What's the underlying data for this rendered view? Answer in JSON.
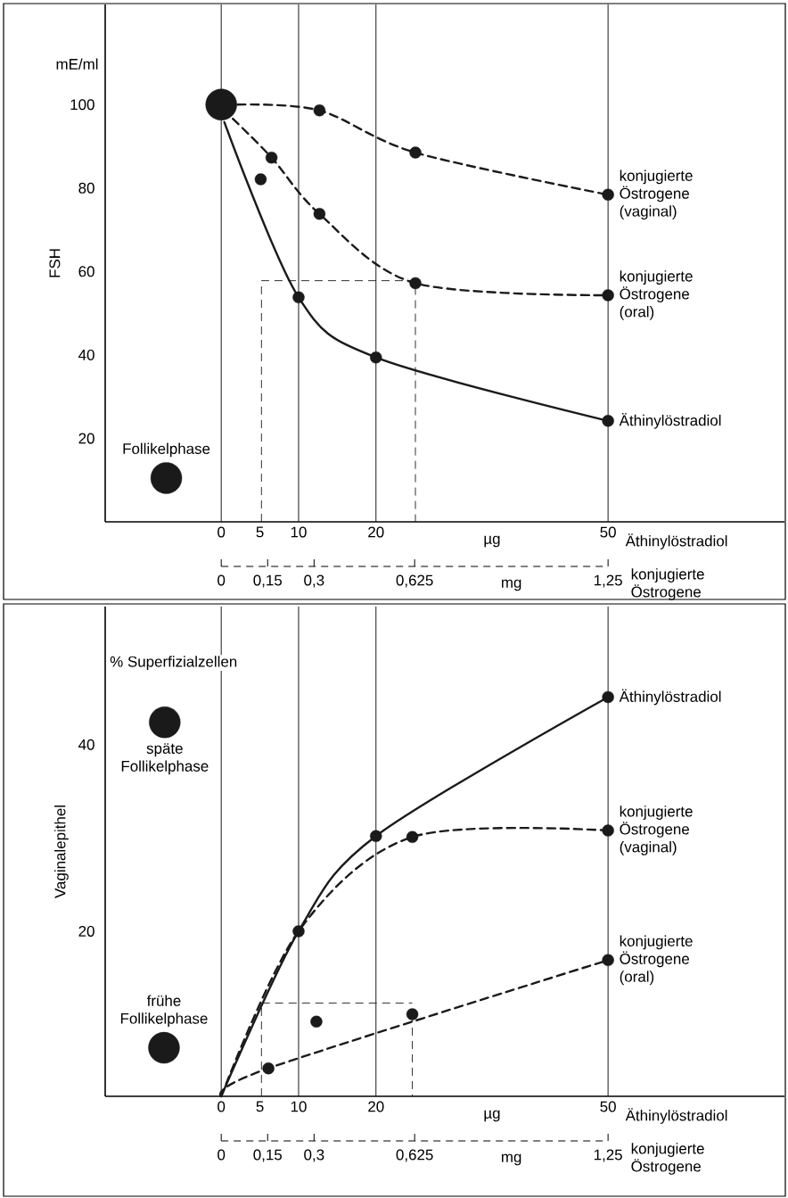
{
  "chart_data": [
    {
      "type": "line",
      "ylabel": "FSH",
      "xlabel": "µg",
      "x2label": "mg",
      "xlim": [
        -15,
        72.8
      ],
      "xticks": [
        0,
        5,
        10,
        20,
        50
      ],
      "x2lim": [
        -0.375,
        1.82
      ],
      "x2ticks": [
        0,
        {
          "value": 0.15,
          "label": "0,15"
        },
        {
          "value": 0.3,
          "label": "0,3"
        },
        {
          "value": 0.625,
          "label": "0,625"
        },
        {
          "value": 1.25,
          "label": "1,25"
        }
      ],
      "ylim": [
        0,
        124
      ],
      "yticks": [
        20,
        40,
        60,
        80,
        100
      ],
      "ref_lines": [
        {
          "axis": "x",
          "value": 0,
          "color": "#1a1a1a"
        },
        {
          "axis": "x",
          "value": 10,
          "color": "#1a1a1a"
        },
        {
          "axis": "x",
          "value": 20,
          "color": "#1a1a1a"
        },
        {
          "axis": "x",
          "value": 50,
          "color": "#1a1a1a"
        }
      ],
      "annotations": [
        "mE/ml",
        "Äthinylöstradiol",
        "konjugierte Östrogene",
        {
          "text": "Follikelphase",
          "x": -7.1,
          "y": 10.5
        }
      ],
      "series": [
        {
          "type": "line",
          "name": "konjugierte Östrogene (vaginal)",
          "color": "#1a1a1a",
          "line_style": "dashed",
          "marker": "none",
          "x": [
            2.1,
            12.7,
            25.1,
            50
          ],
          "values": [
            100,
            98.6,
            88.5,
            78.4
          ]
        },
        {
          "type": "line",
          "name": "konjugierte Östrogene (oral)",
          "color": "#1a1a1a",
          "line_style": "dashed",
          "marker": "none",
          "x": [
            1.5,
            6.5,
            12.7,
            25.1,
            50
          ],
          "values": [
            96.6,
            87.3,
            73.8,
            57.2,
            54.3
          ]
        },
        {
          "type": "line",
          "name": "Äthinylöstradiol",
          "color": "#1a1a1a",
          "line_style": "solid",
          "marker": "none",
          "x": [
            0.4,
            10,
            20,
            50
          ],
          "values": [
            95.8,
            53.8,
            39.4,
            24.2
          ]
        },
        {
          "type": "line",
          "color": "#1a1a1a",
          "line_style": "dashed",
          "marker": "none",
          "x": [
            5.2,
            5.2,
            25.1,
            25.1
          ],
          "values": [
            0,
            57.8,
            57.8,
            0
          ]
        },
        {
          "type": "scatter",
          "color": "#1a1a1a",
          "marker": "circle",
          "x": [
            12.7,
            25.1,
            50,
            6.5,
            5.1,
            12.7,
            25.1,
            50,
            10,
            20,
            50
          ],
          "values": [
            98.6,
            88.5,
            78.4,
            87.3,
            82.1,
            73.8,
            57.2,
            54.3,
            53.8,
            39.4,
            24.2
          ]
        },
        {
          "type": "bubble",
          "color": "#1a1a1a",
          "marker": "circle",
          "x": [
            0,
            -7.1
          ],
          "values": [
            100,
            10.5
          ],
          "sizes": [
            1,
            1
          ]
        }
      ]
    },
    {
      "type": "line",
      "ylabel": "Vaginalepithel",
      "xlabel": "µg",
      "x2label": "mg",
      "xlim": [
        -15,
        72.8
      ],
      "xticks": [
        0,
        5,
        10,
        20,
        50
      ],
      "x2lim": [
        -0.375,
        1.82
      ],
      "x2ticks": [
        0,
        {
          "value": 0.15,
          "label": "0,15"
        },
        {
          "value": 0.3,
          "label": "0,3"
        },
        {
          "value": 0.625,
          "label": "0,625"
        },
        {
          "value": 1.25,
          "label": "1,25"
        }
      ],
      "ylim": [
        2.3,
        54.8
      ],
      "yticks": [
        20,
        40
      ],
      "ref_lines": [
        {
          "axis": "x",
          "value": 0,
          "color": "#1a1a1a"
        },
        {
          "axis": "x",
          "value": 10,
          "color": "#1a1a1a"
        },
        {
          "axis": "x",
          "value": 20,
          "color": "#1a1a1a"
        },
        {
          "axis": "x",
          "value": 50,
          "color": "#1a1a1a"
        }
      ],
      "annotations": [
        "% Superfizialzellen",
        "Äthinylöstradiol",
        "konjugierte Östrogene",
        {
          "text": "späte Follikelphase",
          "x": -7.3,
          "y": 42.4
        },
        {
          "text": "frühe Follikelphase",
          "x": -7.4,
          "y": 7.5
        }
      ],
      "series": [
        {
          "type": "line",
          "name": "Äthinylöstradiol",
          "color": "#1a1a1a",
          "line_style": "solid",
          "marker": "none",
          "x": [
            0,
            10,
            20,
            50
          ],
          "values": [
            2.3,
            20,
            30.2,
            45.1
          ]
        },
        {
          "type": "line",
          "name": "konjugierte Östrogene (vaginal)",
          "color": "#1a1a1a",
          "line_style": "dashed",
          "marker": "none",
          "x": [
            0,
            10,
            24.7,
            50
          ],
          "values": [
            2.3,
            20,
            30.1,
            30.8
          ]
        },
        {
          "type": "line",
          "name": "konjugierte Östrogene (oral)",
          "color": "#1a1a1a",
          "line_style": "dashed",
          "marker": "none",
          "x": [
            0,
            6.1,
            50
          ],
          "values": [
            2.3,
            5.3,
            16.9
          ]
        },
        {
          "type": "line",
          "color": "#1a1a1a",
          "line_style": "dashed",
          "marker": "none",
          "x": [
            5.2,
            5.2,
            24.7
          ],
          "values": [
            2.3,
            12.3,
            12.3
          ]
        },
        {
          "type": "line",
          "color": "#1a1a1a",
          "line_style": "dashed",
          "marker": "none",
          "x": [
            24.7,
            24.7
          ],
          "values": [
            11.1,
            2.3
          ]
        },
        {
          "type": "scatter",
          "color": "#1a1a1a",
          "marker": "circle",
          "x": [
            10,
            20,
            50,
            24.7,
            50,
            6.1,
            12.3,
            24.7,
            50
          ],
          "values": [
            20,
            30.2,
            45.1,
            30.1,
            30.8,
            5.3,
            10.3,
            11.1,
            16.9
          ]
        },
        {
          "type": "bubble",
          "color": "#1a1a1a",
          "marker": "circle",
          "x": [
            -7.3,
            -7.4
          ],
          "values": [
            42.4,
            7.5
          ],
          "sizes": [
            1,
            1
          ]
        }
      ]
    }
  ]
}
